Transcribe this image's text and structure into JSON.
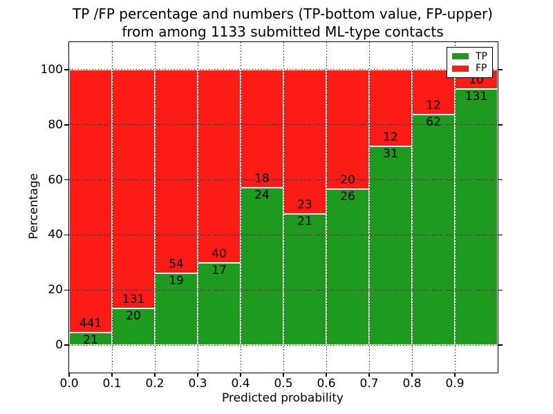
{
  "figure": {
    "title_line1": "TP /FP percentage and numbers (TP-bottom value, FP-upper)",
    "title_line2": "from among 1133 submitted ML-type contacts"
  },
  "chart_data": {
    "type": "bar",
    "stacked": true,
    "title": "TP /FP percentage and numbers (TP-bottom value, FP-upper) from among 1133 submitted ML-type contacts",
    "xlabel": "Predicted probability",
    "ylabel": "Percentage",
    "total_submitted_contacts": 1133,
    "categories": [
      "0.0-0.1",
      "0.1-0.2",
      "0.2-0.3",
      "0.3-0.4",
      "0.4-0.5",
      "0.5-0.6",
      "0.6-0.7",
      "0.7-0.8",
      "0.8-0.9",
      "0.9-1.0"
    ],
    "x_tick_labels": [
      "0.0",
      "0.1",
      "0.2",
      "0.3",
      "0.4",
      "0.5",
      "0.6",
      "0.7",
      "0.8",
      "0.9"
    ],
    "y_tick_values": [
      0,
      20,
      40,
      60,
      80,
      100
    ],
    "xlim": [
      0.0,
      1.0
    ],
    "ylim": [
      -10,
      110
    ],
    "bars_normalized_to": 100,
    "grid": "dotted black, both axes, on",
    "legend_position": "upper right",
    "bar_edge_color": "#ffffff",
    "series": [
      {
        "name": "TP",
        "color": "#1e9b1e",
        "counts": [
          21,
          20,
          19,
          17,
          24,
          21,
          26,
          31,
          62,
          131
        ]
      },
      {
        "name": "FP",
        "color": "#fb1c15",
        "counts": [
          441,
          131,
          54,
          40,
          18,
          23,
          20,
          12,
          12,
          10
        ]
      }
    ],
    "tp_percent_of_bin": [
      4.5,
      13.2,
      26.0,
      29.8,
      57.1,
      47.7,
      56.5,
      72.1,
      83.8,
      92.9
    ]
  }
}
